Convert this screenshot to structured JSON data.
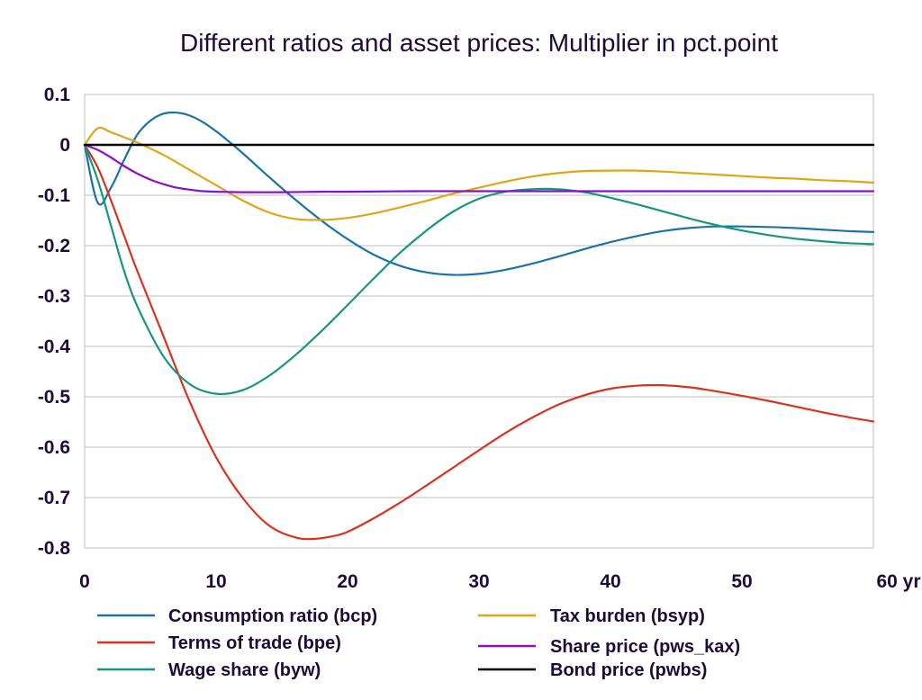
{
  "chart_data": {
    "type": "line",
    "title": "Different ratios and asset prices: Multiplier in pct.point",
    "x_unit_label": "yr",
    "xlim": [
      0,
      60
    ],
    "ylim": [
      -0.8,
      0.1
    ],
    "x_ticks": [
      0,
      10,
      20,
      30,
      40,
      50,
      60
    ],
    "y_ticks": [
      0.1,
      0,
      -0.1,
      -0.2,
      -0.3,
      -0.4,
      -0.5,
      -0.6,
      -0.7,
      -0.8
    ],
    "x_tick_labels": [
      "0",
      "10",
      "20",
      "30",
      "40",
      "50",
      "60 yr"
    ],
    "y_tick_labels": [
      "0.1",
      "0",
      "-0.1",
      "-0.2",
      "-0.3",
      "-0.4",
      "-0.5",
      "-0.6",
      "-0.7",
      "-0.8"
    ],
    "grid": "horizontal",
    "legend_position": "bottom",
    "series": [
      {
        "name": "Consumption ratio (bcp)",
        "color": "#1a73a8",
        "x": [
          0,
          1,
          2,
          3,
          4,
          5,
          6,
          7,
          8,
          9,
          10,
          11,
          12,
          14,
          16,
          18,
          20,
          22,
          24,
          26,
          28,
          30,
          32,
          34,
          36,
          38,
          40,
          42,
          44,
          46,
          48,
          50,
          52,
          54,
          56,
          58,
          60
        ],
        "y": [
          0,
          -0.115,
          -0.085,
          -0.03,
          0.02,
          0.048,
          0.062,
          0.064,
          0.058,
          0.045,
          0.027,
          0.006,
          -0.016,
          -0.063,
          -0.108,
          -0.15,
          -0.187,
          -0.218,
          -0.24,
          -0.253,
          -0.258,
          -0.256,
          -0.248,
          -0.236,
          -0.222,
          -0.207,
          -0.193,
          -0.181,
          -0.171,
          -0.165,
          -0.162,
          -0.162,
          -0.163,
          -0.165,
          -0.168,
          -0.171,
          -0.173
        ]
      },
      {
        "name": "Terms of trade (bpe)",
        "color": "#d9321f",
        "x": [
          0,
          1,
          2,
          3,
          4,
          6,
          8,
          10,
          12,
          14,
          16,
          17.5,
          19,
          20,
          22,
          24,
          26,
          28,
          30,
          32,
          34,
          36,
          38,
          40,
          42,
          44,
          46,
          48,
          50,
          52,
          54,
          56,
          58,
          60
        ],
        "y": [
          0,
          -0.045,
          -0.11,
          -0.18,
          -0.25,
          -0.38,
          -0.51,
          -0.62,
          -0.7,
          -0.755,
          -0.779,
          -0.782,
          -0.776,
          -0.768,
          -0.741,
          -0.71,
          -0.676,
          -0.641,
          -0.606,
          -0.572,
          -0.542,
          -0.516,
          -0.497,
          -0.484,
          -0.478,
          -0.477,
          -0.481,
          -0.489,
          -0.498,
          -0.508,
          -0.519,
          -0.53,
          -0.54,
          -0.549
        ]
      },
      {
        "name": "Wage share (byw)",
        "color": "#16967a",
        "x": [
          0,
          1,
          2,
          3,
          4,
          6,
          8,
          10,
          12,
          14,
          16,
          18,
          20,
          22,
          24,
          26,
          28,
          30,
          32,
          34,
          36,
          38,
          40,
          42,
          44,
          46,
          48,
          50,
          52,
          54,
          56,
          58,
          60
        ],
        "y": [
          0,
          -0.07,
          -0.16,
          -0.25,
          -0.32,
          -0.42,
          -0.475,
          -0.494,
          -0.487,
          -0.459,
          -0.418,
          -0.37,
          -0.318,
          -0.265,
          -0.214,
          -0.17,
          -0.133,
          -0.107,
          -0.093,
          -0.088,
          -0.088,
          -0.094,
          -0.105,
          -0.118,
          -0.132,
          -0.146,
          -0.159,
          -0.17,
          -0.179,
          -0.186,
          -0.191,
          -0.195,
          -0.197
        ]
      },
      {
        "name": "Tax burden (bsyp)",
        "color": "#e0a514",
        "x": [
          0,
          1,
          2,
          3,
          4,
          6,
          8,
          10,
          12,
          14,
          16,
          18,
          20,
          22,
          24,
          26,
          28,
          30,
          32,
          34,
          36,
          38,
          40,
          42,
          44,
          46,
          48,
          50,
          52,
          54,
          56,
          58,
          60
        ],
        "y": [
          0,
          0.033,
          0.025,
          0.015,
          0.005,
          -0.02,
          -0.05,
          -0.08,
          -0.11,
          -0.134,
          -0.147,
          -0.149,
          -0.145,
          -0.136,
          -0.124,
          -0.111,
          -0.097,
          -0.085,
          -0.073,
          -0.063,
          -0.056,
          -0.052,
          -0.051,
          -0.051,
          -0.053,
          -0.056,
          -0.059,
          -0.062,
          -0.065,
          -0.067,
          -0.07,
          -0.072,
          -0.075
        ]
      },
      {
        "name": "Share price (pws_kax)",
        "color": "#8a0fc9",
        "x": [
          0,
          1,
          2,
          3,
          4,
          5,
          6,
          7,
          8,
          9,
          10,
          12,
          15,
          18,
          20,
          25,
          30,
          40,
          50,
          60
        ],
        "y": [
          0,
          -0.01,
          -0.025,
          -0.042,
          -0.057,
          -0.069,
          -0.078,
          -0.085,
          -0.089,
          -0.092,
          -0.093,
          -0.094,
          -0.094,
          -0.093,
          -0.093,
          -0.092,
          -0.092,
          -0.092,
          -0.092,
          -0.092
        ]
      },
      {
        "name": "Bond price (pwbs)",
        "color": "#000000",
        "x": [
          0,
          60
        ],
        "y": [
          0,
          0
        ]
      }
    ]
  }
}
